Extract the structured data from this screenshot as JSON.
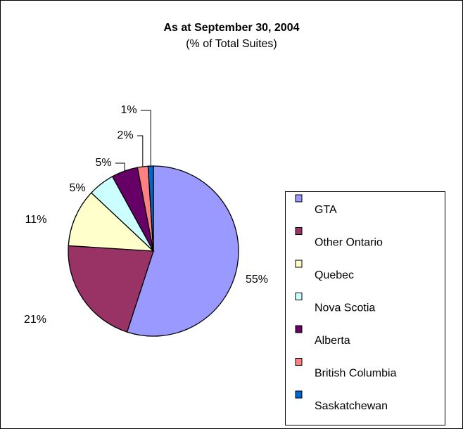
{
  "chart_data": {
    "type": "pie",
    "title": "As at September 30, 2004",
    "subtitle": "(% of Total Suites)",
    "categories": [
      "GTA",
      "Other Ontario",
      "Quebec",
      "Nova Scotia",
      "Alberta",
      "British Columbia",
      "Saskatchewan"
    ],
    "values": [
      55,
      21,
      11,
      5,
      5,
      2,
      1
    ],
    "value_labels": [
      "55%",
      "21%",
      "11%",
      "5%",
      "5%",
      "2%",
      "1%"
    ],
    "colors": [
      "#9999ff",
      "#993366",
      "#ffffcc",
      "#ccffff",
      "#660066",
      "#ff8080",
      "#0066cc"
    ],
    "legend": "right"
  }
}
